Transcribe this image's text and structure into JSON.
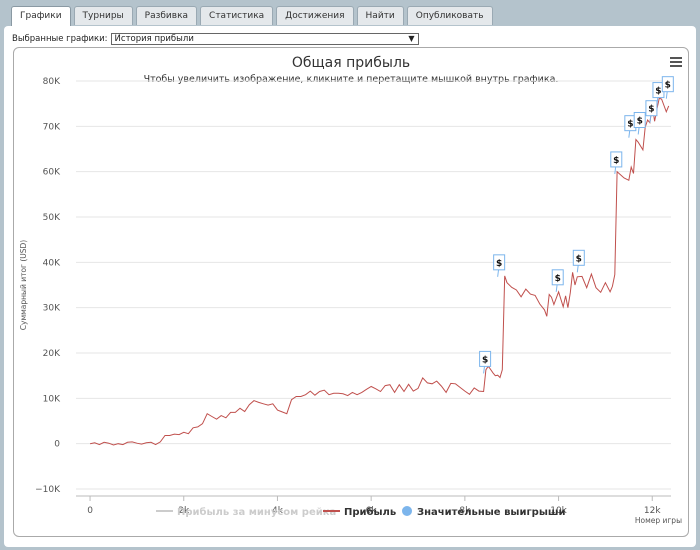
{
  "tabs": [
    {
      "label": "Графики",
      "active": true
    },
    {
      "label": "Турниры",
      "active": false
    },
    {
      "label": "Разбивка",
      "active": false
    },
    {
      "label": "Статистика",
      "active": false
    },
    {
      "label": "Достижения",
      "active": false
    },
    {
      "label": "Найти",
      "active": false
    },
    {
      "label": "Опубликовать",
      "active": false
    }
  ],
  "selector": {
    "label": "Выбранные графики:",
    "value": "История прибыли"
  },
  "chart_data": {
    "type": "line",
    "title": "Общая прибыль",
    "subtitle": "Чтобы увеличить изображение, кликните и перетащите мышкой внутрь графика.",
    "ylabel": "Суммарный итог (USD)",
    "xlabel": "Номер игры",
    "ylim": [
      -10000,
      80000
    ],
    "xlim": [
      -300,
      12400
    ],
    "y_ticks": [
      {
        "v": -10000,
        "l": "−10K"
      },
      {
        "v": 0,
        "l": "0"
      },
      {
        "v": 10000,
        "l": "10K"
      },
      {
        "v": 20000,
        "l": "20K"
      },
      {
        "v": 30000,
        "l": "30K"
      },
      {
        "v": 40000,
        "l": "40K"
      },
      {
        "v": 50000,
        "l": "50K"
      },
      {
        "v": 60000,
        "l": "60K"
      },
      {
        "v": 70000,
        "l": "70K"
      },
      {
        "v": 80000,
        "l": "80K"
      }
    ],
    "x_ticks": [
      {
        "v": 0,
        "l": "0"
      },
      {
        "v": 2000,
        "l": "2k"
      },
      {
        "v": 4000,
        "l": "4k"
      },
      {
        "v": 6000,
        "l": "6k"
      },
      {
        "v": 8000,
        "l": "8k"
      },
      {
        "v": 10000,
        "l": "10k"
      },
      {
        "v": 12000,
        "l": "12k"
      }
    ],
    "grid": true,
    "legend_position": "bottom",
    "colors": {
      "profit": "#c0504d",
      "rake": "#cccccc",
      "wins": "#7cb5ec"
    },
    "series": [
      {
        "name": "Прибыль за минусом рейка",
        "visible": false,
        "values": []
      },
      {
        "name": "Прибыль",
        "x": [
          0,
          100,
          200,
          300,
          400,
          500,
          600,
          700,
          800,
          900,
          1000,
          1100,
          1200,
          1300,
          1400,
          1500,
          1600,
          1700,
          1800,
          1900,
          2000,
          2100,
          2200,
          2300,
          2400,
          2500,
          2600,
          2700,
          2800,
          2900,
          3000,
          3100,
          3200,
          3300,
          3400,
          3500,
          3600,
          3700,
          3800,
          3900,
          4000,
          4100,
          4200,
          4300,
          4400,
          4500,
          4600,
          4700,
          4800,
          4900,
          5000,
          5100,
          5200,
          5300,
          5400,
          5500,
          5600,
          5700,
          5800,
          5900,
          6000,
          6100,
          6200,
          6300,
          6400,
          6500,
          6600,
          6700,
          6800,
          6900,
          7000,
          7100,
          7200,
          7300,
          7400,
          7500,
          7600,
          7700,
          7800,
          7900,
          8000,
          8100,
          8200,
          8300,
          8400,
          8450,
          8500,
          8600,
          8650,
          8700,
          8750,
          8800,
          8850,
          8900,
          9000,
          9100,
          9200,
          9300,
          9400,
          9500,
          9600,
          9700,
          9750,
          9800,
          9850,
          9900,
          10000,
          10100,
          10150,
          10200,
          10250,
          10300,
          10350,
          10400,
          10500,
          10600,
          10700,
          10800,
          10900,
          11000,
          11100,
          11150,
          11200,
          11250,
          11300,
          11400,
          11500,
          11550,
          11600,
          11650,
          11700,
          11800,
          11850,
          11900,
          11950,
          12000,
          12050,
          12100,
          12150,
          12200,
          12300,
          12350
        ],
        "values": [
          0,
          200,
          -200,
          300,
          100,
          -300,
          0,
          -200,
          300,
          400,
          100,
          -100,
          200,
          300,
          -200,
          400,
          1800,
          1800,
          2100,
          2000,
          2500,
          2200,
          3500,
          3700,
          4400,
          6600,
          6000,
          5400,
          6200,
          5700,
          6900,
          6900,
          7800,
          7100,
          8600,
          9500,
          9100,
          8800,
          8500,
          8800,
          7400,
          7000,
          6600,
          9700,
          10400,
          10400,
          10800,
          11600,
          10700,
          11500,
          11800,
          10800,
          11100,
          11100,
          11000,
          10600,
          11300,
          10800,
          11300,
          12000,
          12600,
          12100,
          11500,
          12800,
          13000,
          11300,
          13000,
          11500,
          13100,
          11600,
          12200,
          14500,
          13400,
          13200,
          13800,
          12700,
          11300,
          13300,
          13200,
          12400,
          11600,
          10900,
          12300,
          11600,
          11500,
          16300,
          17100,
          15600,
          15000,
          15100,
          14600,
          16300,
          37000,
          35500,
          34500,
          33900,
          32400,
          34100,
          33000,
          32700,
          30800,
          29500,
          28100,
          32900,
          32300,
          30700,
          33500,
          30200,
          32600,
          30000,
          33300,
          37800,
          35000,
          36800,
          36900,
          34400,
          37400,
          34400,
          33400,
          35500,
          33500,
          34700,
          37300,
          60000,
          59500,
          58600,
          58100,
          61000,
          59600,
          67100,
          66500,
          64800,
          69800,
          71400,
          70800,
          74700,
          71100,
          73800,
          76200,
          76000,
          73200,
          74500
        ]
      },
      {
        "name": "Значительные выигрыши",
        "markers": [
          {
            "x": 8400,
            "y": 15500,
            "label": "$"
          },
          {
            "x": 8700,
            "y": 36800,
            "label": "$"
          },
          {
            "x": 9950,
            "y": 33500,
            "label": "$"
          },
          {
            "x": 10400,
            "y": 37800,
            "label": "$"
          },
          {
            "x": 11200,
            "y": 59500,
            "label": "$"
          },
          {
            "x": 11500,
            "y": 67500,
            "label": "$"
          },
          {
            "x": 11700,
            "y": 68200,
            "label": "$"
          },
          {
            "x": 11950,
            "y": 70800,
            "label": "$"
          },
          {
            "x": 12100,
            "y": 74800,
            "label": "$"
          },
          {
            "x": 12300,
            "y": 76100,
            "label": "$"
          }
        ]
      }
    ]
  }
}
